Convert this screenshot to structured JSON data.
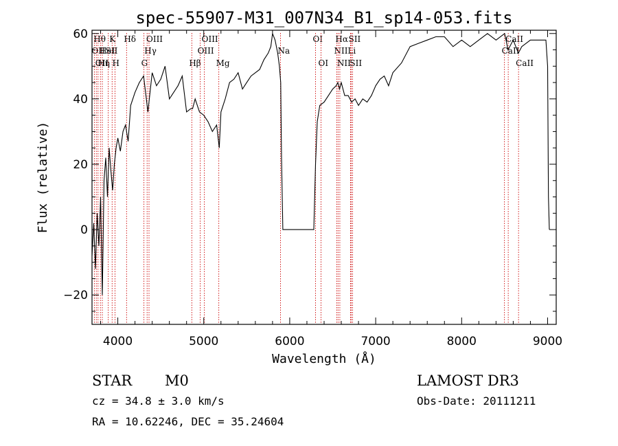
{
  "chart_data": {
    "type": "line",
    "title": "spec-55907-M31_007N34_B1_sp14-053.fits",
    "xlabel": "Wavelength (Å)",
    "ylabel": "Flux (relative)",
    "xlim": [
      3700,
      9100
    ],
    "ylim": [
      -29,
      61
    ],
    "xticks": [
      4000,
      5000,
      6000,
      7000,
      8000,
      9000
    ],
    "yticks": [
      -20,
      0,
      20,
      40,
      60
    ],
    "grid": false,
    "series": [
      {
        "x": [
          3700,
          3720,
          3740,
          3760,
          3780,
          3800,
          3820,
          3840,
          3860,
          3880,
          3900,
          3920,
          3940,
          3960,
          3980,
          4000,
          4030,
          4060,
          4090,
          4120,
          4150,
          4200,
          4250,
          4300,
          4350,
          4400,
          4450,
          4500,
          4550,
          4600,
          4650,
          4700,
          4750,
          4800,
          4850,
          4870,
          4900,
          4950,
          5000,
          5050,
          5100,
          5150,
          5180,
          5200,
          5250,
          5300,
          5350,
          5400,
          5450,
          5500,
          5550,
          5600,
          5650,
          5700,
          5750,
          5780,
          5800,
          5830,
          5860,
          5880,
          5895,
          5905,
          5920,
          5940,
          6000,
          6100,
          6200,
          6280,
          6300,
          6320,
          6350,
          6400,
          6450,
          6500,
          6540,
          6560,
          6580,
          6600,
          6640,
          6680,
          6720,
          6760,
          6800,
          6850,
          6900,
          6950,
          7000,
          7050,
          7100,
          7150,
          7200,
          7300,
          7400,
          7500,
          7600,
          7700,
          7800,
          7900,
          8000,
          8100,
          8200,
          8300,
          8400,
          8500,
          8540,
          8600,
          8660,
          8700,
          8800,
          8900,
          8980,
          9000,
          9010,
          9020
        ],
        "y": [
          -8,
          2,
          -12,
          5,
          -5,
          10,
          -20,
          15,
          22,
          10,
          25,
          18,
          12,
          20,
          25,
          28,
          24,
          30,
          32,
          27,
          38,
          42,
          45,
          47,
          36,
          48,
          44,
          46,
          50,
          40,
          42,
          44,
          47,
          36,
          37,
          37,
          40,
          36,
          35,
          33,
          30,
          32,
          25,
          36,
          40,
          45,
          46,
          48,
          43,
          45,
          47,
          48,
          49,
          52,
          54,
          56,
          60,
          58,
          54,
          50,
          45,
          22,
          0,
          0,
          0,
          0,
          0,
          0,
          20,
          33,
          38,
          39,
          41,
          43,
          44,
          45,
          43,
          45,
          41,
          41,
          39,
          40,
          38,
          40,
          39,
          41,
          44,
          46,
          47,
          44,
          48,
          51,
          56,
          57,
          58,
          59,
          59,
          56,
          58,
          56,
          58,
          60,
          58,
          60,
          55,
          58,
          54,
          56,
          58,
          58,
          58,
          50,
          10,
          0
        ]
      }
    ],
    "line_markers": [
      {
        "wavelength": 3727,
        "label": "OII",
        "row": 2
      },
      {
        "wavelength": 3750,
        "label": "Hθ",
        "row": 1
      },
      {
        "wavelength": 3770,
        "label": "OII",
        "row": 3
      },
      {
        "wavelength": 3798,
        "label": "Hη",
        "row": 3
      },
      {
        "wavelength": 3820,
        "label": "HeI",
        "row": 2
      },
      {
        "wavelength": 3889,
        "label": "SII",
        "row": 2
      },
      {
        "wavelength": 3934,
        "label": "K",
        "row": 1
      },
      {
        "wavelength": 3968,
        "label": "H",
        "row": 3
      },
      {
        "wavelength": 4102,
        "label": "Hδ",
        "row": 1
      },
      {
        "wavelength": 4304,
        "label": "G",
        "row": 3
      },
      {
        "wavelength": 4341,
        "label": "Hγ",
        "row": 2
      },
      {
        "wavelength": 4363,
        "label": "OIII",
        "row": 1
      },
      {
        "wavelength": 4861,
        "label": "Hβ",
        "row": 3
      },
      {
        "wavelength": 4959,
        "label": "OIII",
        "row": 2
      },
      {
        "wavelength": 5007,
        "label": "OIII",
        "row": 1
      },
      {
        "wavelength": 5175,
        "label": "Mg",
        "row": 3
      },
      {
        "wavelength": 5893,
        "label": "Na",
        "row": 2
      },
      {
        "wavelength": 6300,
        "label": "OI",
        "row": 1
      },
      {
        "wavelength": 6364,
        "label": "OI",
        "row": 3
      },
      {
        "wavelength": 6548,
        "label": "NII",
        "row": 2
      },
      {
        "wavelength": 6563,
        "label": "Hα",
        "row": 1
      },
      {
        "wavelength": 6583,
        "label": "NII",
        "row": 3
      },
      {
        "wavelength": 6707,
        "label": "Li",
        "row": 2
      },
      {
        "wavelength": 6716,
        "label": "SII",
        "row": 1
      },
      {
        "wavelength": 6731,
        "label": "SII",
        "row": 3
      },
      {
        "wavelength": 8498,
        "label": "CaII",
        "row": 2
      },
      {
        "wavelength": 8542,
        "label": "CaII",
        "row": 1
      },
      {
        "wavelength": 8662,
        "label": "CaII",
        "row": 3
      }
    ]
  },
  "info": {
    "object_class": "STAR",
    "subclass": "M0",
    "survey": "LAMOST DR3",
    "redshift": "cz = 34.8 ± 3.0 km/s",
    "obs_date": "Obs-Date: 20111211",
    "coords": "RA =  10.62246, DEC =  35.24604"
  },
  "colors": {
    "line": "#000000",
    "marker": "#cc0000",
    "axis": "#000000",
    "background": "#ffffff"
  }
}
